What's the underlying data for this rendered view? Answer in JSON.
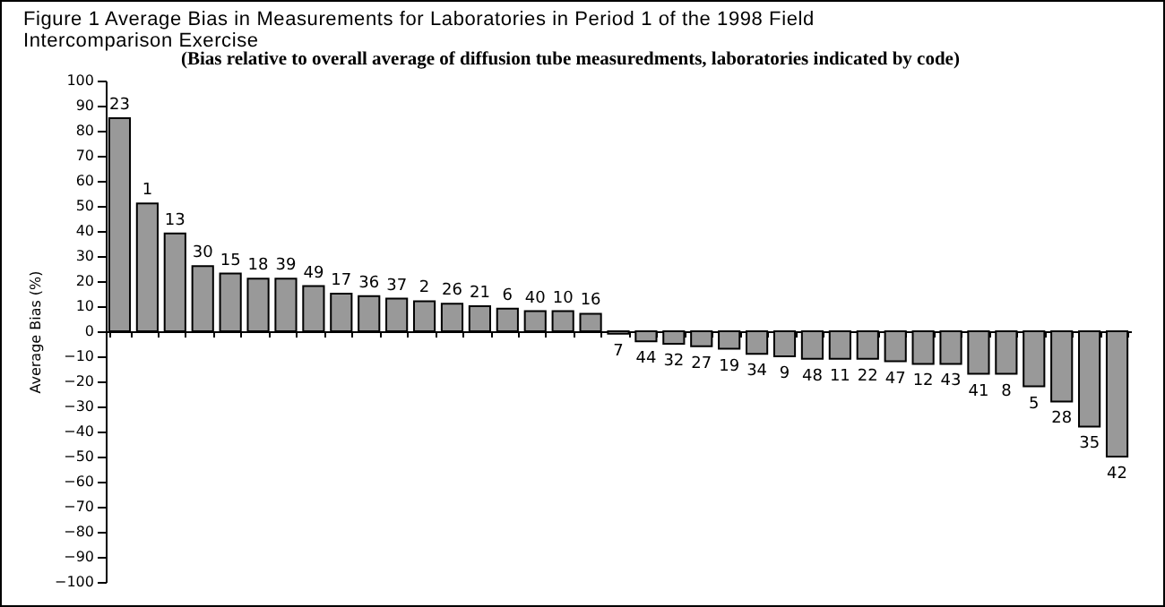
{
  "chart_data": {
    "type": "bar",
    "title": "Figure 1  Average Bias in Measurements for Laboratories in Period 1 of the 1998 Field Intercomparison Exercise",
    "subtitle": "(Bias relative to overall average of diffusion tube measuredments, laboratories indicated by code)",
    "ylabel": "Average Bias (%)",
    "categories": [
      "23",
      "1",
      "13",
      "30",
      "15",
      "18",
      "39",
      "49",
      "17",
      "36",
      "37",
      "2",
      "26",
      "21",
      "6",
      "40",
      "10",
      "16",
      "7",
      "44",
      "32",
      "27",
      "19",
      "34",
      "9",
      "48",
      "11",
      "22",
      "47",
      "12",
      "43",
      "41",
      "8",
      "5",
      "28",
      "35",
      "42"
    ],
    "values": [
      85,
      51,
      39,
      26,
      23,
      21,
      21,
      18,
      15,
      14,
      13,
      12,
      11,
      10,
      9,
      8,
      8,
      7,
      -1,
      -4,
      -5,
      -6,
      -7,
      -9,
      -10,
      -11,
      -11,
      -11,
      -12,
      -13,
      -13,
      -17,
      -17,
      -22,
      -28,
      -38,
      -50
    ],
    "color": "#999999",
    "ylim": [
      -100,
      100
    ],
    "yticks": [
      -100,
      -90,
      -80,
      -70,
      -60,
      -50,
      -40,
      -30,
      -20,
      -10,
      0,
      10,
      20,
      30,
      40,
      50,
      60,
      70,
      80,
      90,
      100
    ],
    "grid": false,
    "tick_labels": "y"
  }
}
